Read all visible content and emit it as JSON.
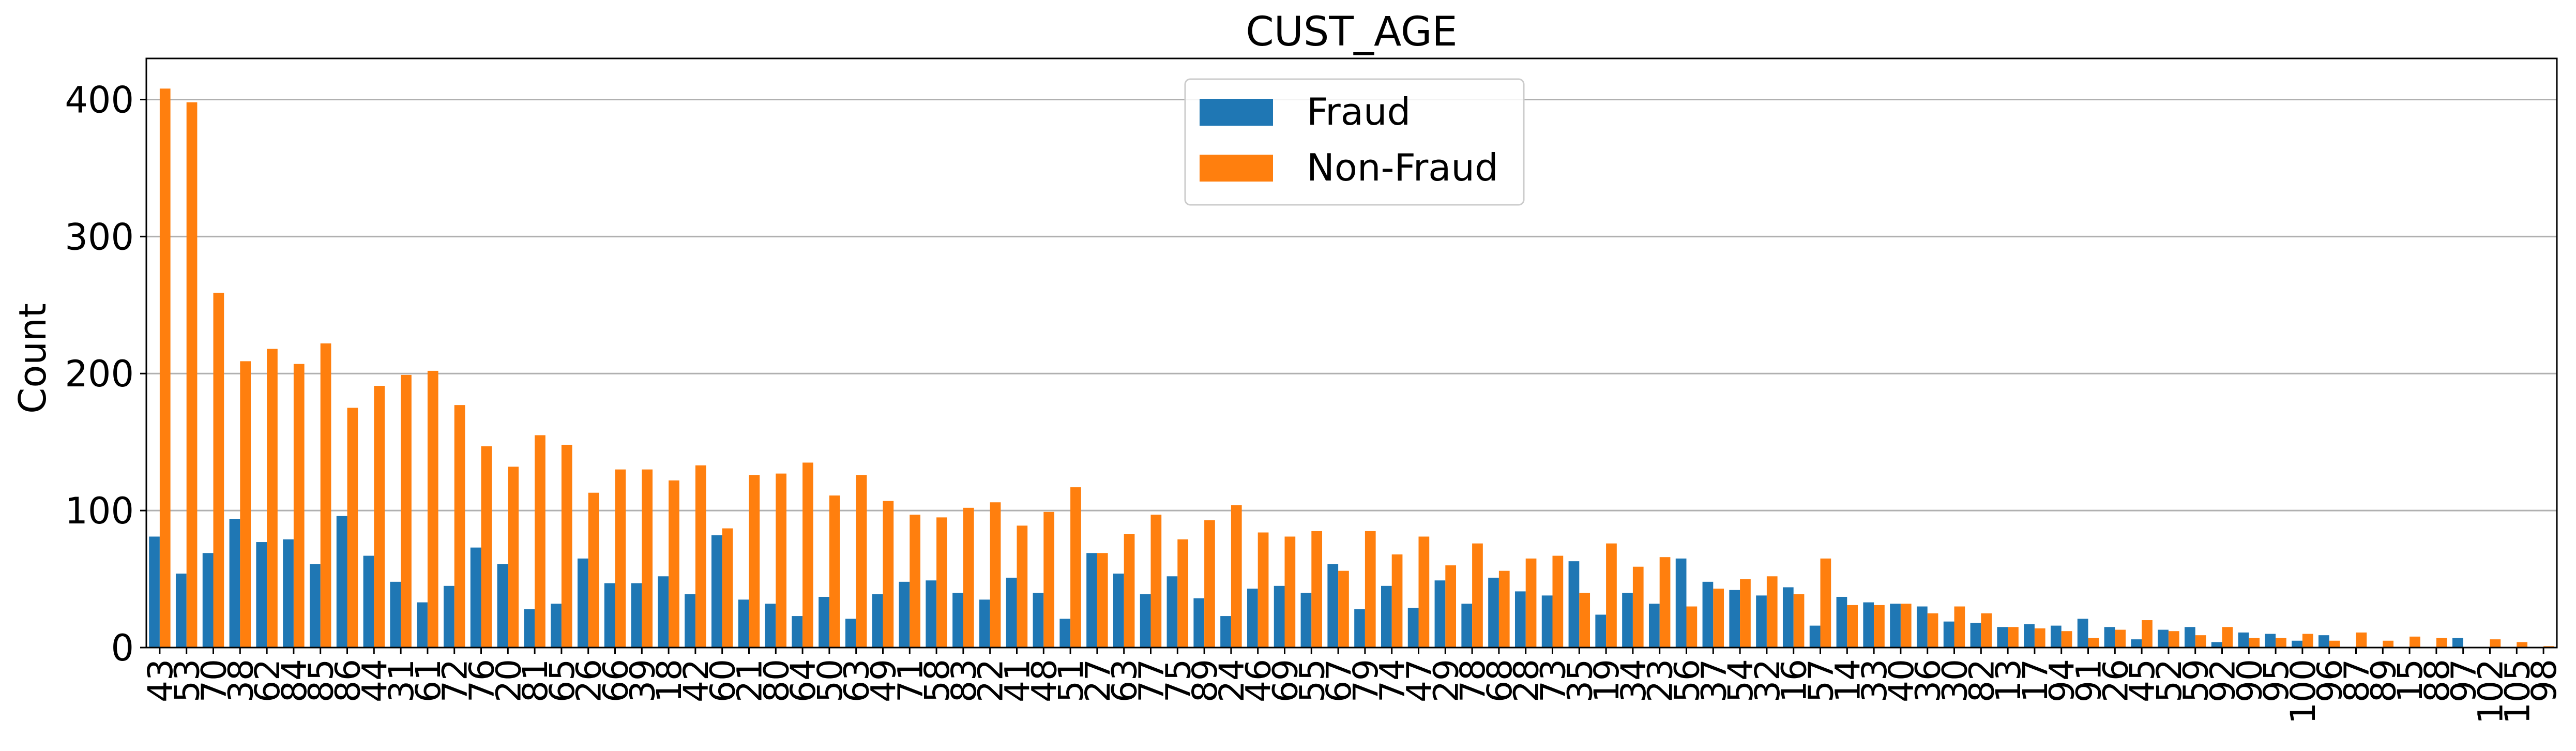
{
  "chart_data": {
    "type": "bar",
    "title": "CUST_AGE",
    "xlabel": "",
    "ylabel": "Count",
    "ylim": [
      0,
      430
    ],
    "yticks": [
      0,
      100,
      200,
      300,
      400
    ],
    "grid": "y",
    "legend_position": "top-center",
    "categories": [
      "43",
      "53",
      "70",
      "38",
      "62",
      "84",
      "85",
      "86",
      "44",
      "31",
      "61",
      "72",
      "76",
      "20",
      "81",
      "65",
      "26",
      "66",
      "39",
      "18",
      "42",
      "60",
      "21",
      "80",
      "64",
      "50",
      "63",
      "49",
      "71",
      "58",
      "83",
      "22",
      "41",
      "48",
      "51",
      "27",
      "63",
      "77",
      "75",
      "89",
      "24",
      "46",
      "69",
      "55",
      "67",
      "79",
      "74",
      "47",
      "29",
      "78",
      "68",
      "28",
      "73",
      "35",
      "19",
      "34",
      "23",
      "56",
      "37",
      "54",
      "32",
      "16",
      "57",
      "14",
      "33",
      "40",
      "36",
      "30",
      "82",
      "13",
      "17",
      "94",
      "91",
      "26",
      "45",
      "52",
      "59",
      "92",
      "90",
      "95",
      "100",
      "96",
      "87",
      "89",
      "15",
      "88",
      "97",
      "102",
      "105",
      "98"
    ],
    "series": [
      {
        "name": "Fraud",
        "color": "#1f77b4",
        "values": [
          81,
          54,
          69,
          94,
          77,
          79,
          61,
          96,
          67,
          48,
          33,
          45,
          73,
          61,
          28,
          32,
          65,
          47,
          47,
          52,
          39,
          82,
          35,
          32,
          23,
          37,
          21,
          39,
          48,
          49,
          40,
          35,
          51,
          40,
          21,
          69,
          54,
          39,
          52,
          36,
          23,
          43,
          45,
          40,
          61,
          28,
          45,
          29,
          49,
          32,
          51,
          41,
          38,
          63,
          24,
          40,
          32,
          65,
          48,
          42,
          38,
          44,
          16,
          37,
          33,
          32,
          30,
          19,
          18,
          15,
          17,
          16,
          21,
          15,
          6,
          13,
          15,
          4,
          11,
          10,
          5,
          9,
          0,
          0,
          0,
          0,
          7,
          0,
          0,
          0
        ]
      },
      {
        "name": "Non-Fraud",
        "color": "#ff7f0e",
        "values": [
          408,
          398,
          259,
          209,
          218,
          207,
          222,
          175,
          191,
          199,
          202,
          177,
          147,
          132,
          155,
          148,
          113,
          130,
          130,
          122,
          133,
          87,
          126,
          127,
          135,
          111,
          126,
          107,
          97,
          95,
          102,
          106,
          89,
          99,
          117,
          69,
          83,
          97,
          79,
          93,
          104,
          84,
          81,
          85,
          56,
          85,
          68,
          81,
          60,
          76,
          56,
          65,
          67,
          40,
          76,
          59,
          66,
          30,
          43,
          50,
          52,
          39,
          65,
          31,
          31,
          32,
          25,
          30,
          25,
          15,
          14,
          12,
          7,
          13,
          20,
          12,
          9,
          15,
          7,
          7,
          10,
          5,
          11,
          5,
          8,
          7,
          0,
          6,
          4,
          1
        ]
      }
    ]
  }
}
